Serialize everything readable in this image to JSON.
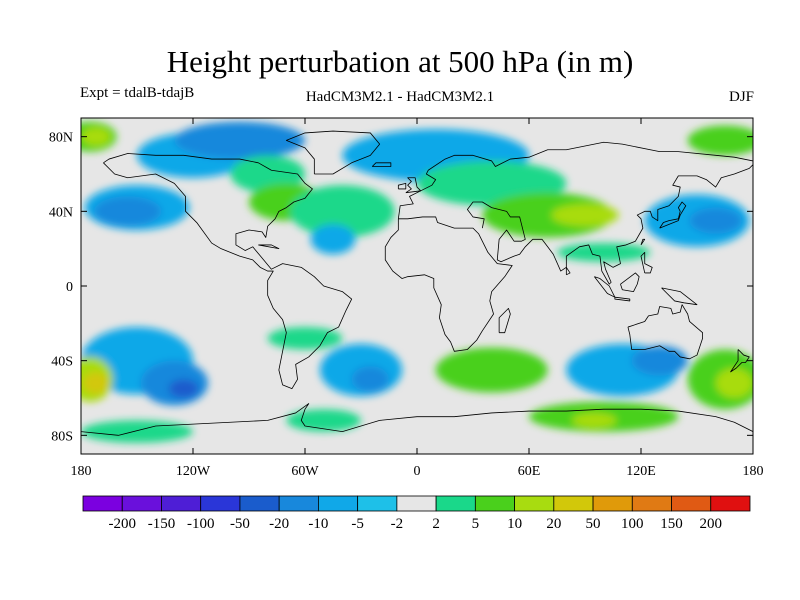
{
  "title": "Height perturbation at 500 hPa (in m)",
  "subtitle_left": "Expt = tdalB-tdajB",
  "subtitle_center": "HadCM3M2.1 - HadCM3M2.1",
  "subtitle_right": "DJF",
  "map": {
    "projection": "cylindrical equidistant",
    "lon_range": [
      -180,
      180
    ],
    "lat_range": [
      -90,
      90
    ],
    "background_color": "#e6e6e6",
    "lat_ticks": [
      {
        "value": 80,
        "label": "80N"
      },
      {
        "value": 40,
        "label": "40N"
      },
      {
        "value": 0,
        "label": "0"
      },
      {
        "value": -40,
        "label": "40S"
      },
      {
        "value": -80,
        "label": "80S"
      }
    ],
    "lon_ticks": [
      {
        "value": -180,
        "label": "180"
      },
      {
        "value": -120,
        "label": "120W"
      },
      {
        "value": -60,
        "label": "60W"
      },
      {
        "value": 0,
        "label": "0"
      },
      {
        "value": 60,
        "label": "60E"
      },
      {
        "value": 120,
        "label": "120E"
      },
      {
        "value": 180,
        "label": "180"
      }
    ]
  },
  "colorbar": {
    "colors": [
      "#7b00e0",
      "#6a10dc",
      "#4e1ed6",
      "#2a36d8",
      "#1a5ccc",
      "#1888dc",
      "#10a8e8",
      "#1ec0e8",
      "#e6e6e6",
      "#1ad88a",
      "#4ad01c",
      "#a8dc10",
      "#d2c80a",
      "#e09a0a",
      "#e07a14",
      "#e05a14",
      "#e01010"
    ],
    "labels": [
      "-200",
      "-150",
      "-100",
      "-50",
      "-20",
      "-10",
      "-5",
      "-2",
      "2",
      "5",
      "10",
      "20",
      "50",
      "100",
      "150",
      "200"
    ]
  },
  "field_blobs": [
    {
      "lon": -150,
      "lat": 42,
      "rx": 28,
      "ry": 12,
      "color": "#10a8e8"
    },
    {
      "lon": -155,
      "lat": 40,
      "rx": 18,
      "ry": 8,
      "color": "#1888dc"
    },
    {
      "lon": -175,
      "lat": 80,
      "rx": 14,
      "ry": 8,
      "color": "#4ad01c"
    },
    {
      "lon": -172,
      "lat": 80,
      "rx": 8,
      "ry": 5,
      "color": "#a8dc10"
    },
    {
      "lon": -120,
      "lat": 70,
      "rx": 30,
      "ry": 12,
      "color": "#10a8e8"
    },
    {
      "lon": -95,
      "lat": 78,
      "rx": 35,
      "ry": 10,
      "color": "#1888dc"
    },
    {
      "lon": -80,
      "lat": 60,
      "rx": 20,
      "ry": 10,
      "color": "#1ad88a"
    },
    {
      "lon": -70,
      "lat": 45,
      "rx": 20,
      "ry": 10,
      "color": "#4ad01c"
    },
    {
      "lon": -40,
      "lat": 40,
      "rx": 28,
      "ry": 14,
      "color": "#1ad88a"
    },
    {
      "lon": -45,
      "lat": 25,
      "rx": 12,
      "ry": 8,
      "color": "#10a8e8"
    },
    {
      "lon": 10,
      "lat": 70,
      "rx": 50,
      "ry": 14,
      "color": "#10a8e8"
    },
    {
      "lon": 40,
      "lat": 55,
      "rx": 40,
      "ry": 12,
      "color": "#1ad88a"
    },
    {
      "lon": 70,
      "lat": 38,
      "rx": 35,
      "ry": 12,
      "color": "#4ad01c"
    },
    {
      "lon": 90,
      "lat": 38,
      "rx": 18,
      "ry": 6,
      "color": "#a8dc10"
    },
    {
      "lon": 150,
      "lat": 35,
      "rx": 28,
      "ry": 14,
      "color": "#10a8e8"
    },
    {
      "lon": 160,
      "lat": 35,
      "rx": 14,
      "ry": 7,
      "color": "#1888dc"
    },
    {
      "lon": 165,
      "lat": 78,
      "rx": 20,
      "ry": 8,
      "color": "#4ad01c"
    },
    {
      "lon": 100,
      "lat": 18,
      "rx": 25,
      "ry": 5,
      "color": "#1ad88a"
    },
    {
      "lon": -150,
      "lat": -40,
      "rx": 30,
      "ry": 18,
      "color": "#10a8e8"
    },
    {
      "lon": -130,
      "lat": -52,
      "rx": 18,
      "ry": 12,
      "color": "#1888dc"
    },
    {
      "lon": -125,
      "lat": -55,
      "rx": 8,
      "ry": 5,
      "color": "#1a5ccc"
    },
    {
      "lon": -175,
      "lat": -50,
      "rx": 12,
      "ry": 12,
      "color": "#a8dc10"
    },
    {
      "lon": -172,
      "lat": -52,
      "rx": 7,
      "ry": 6,
      "color": "#d2c80a"
    },
    {
      "lon": -30,
      "lat": -45,
      "rx": 22,
      "ry": 14,
      "color": "#10a8e8"
    },
    {
      "lon": -25,
      "lat": -50,
      "rx": 10,
      "ry": 7,
      "color": "#1888dc"
    },
    {
      "lon": -60,
      "lat": -28,
      "rx": 20,
      "ry": 6,
      "color": "#1ad88a"
    },
    {
      "lon": 40,
      "lat": -45,
      "rx": 30,
      "ry": 12,
      "color": "#4ad01c"
    },
    {
      "lon": 110,
      "lat": -45,
      "rx": 30,
      "ry": 14,
      "color": "#10a8e8"
    },
    {
      "lon": 130,
      "lat": -40,
      "rx": 15,
      "ry": 8,
      "color": "#1888dc"
    },
    {
      "lon": 165,
      "lat": -50,
      "rx": 20,
      "ry": 16,
      "color": "#4ad01c"
    },
    {
      "lon": 170,
      "lat": -52,
      "rx": 10,
      "ry": 8,
      "color": "#a8dc10"
    },
    {
      "lon": 100,
      "lat": -70,
      "rx": 40,
      "ry": 8,
      "color": "#4ad01c"
    },
    {
      "lon": 95,
      "lat": -72,
      "rx": 12,
      "ry": 4,
      "color": "#a8dc10"
    },
    {
      "lon": -150,
      "lat": -78,
      "rx": 30,
      "ry": 6,
      "color": "#1ad88a"
    },
    {
      "lon": -50,
      "lat": -72,
      "rx": 20,
      "ry": 6,
      "color": "#1ad88a"
    }
  ],
  "coastlines": [
    [
      [
        -168,
        66
      ],
      [
        -162,
        60
      ],
      [
        -155,
        58
      ],
      [
        -140,
        60
      ],
      [
        -130,
        55
      ],
      [
        -124,
        48
      ],
      [
        -124,
        40
      ],
      [
        -118,
        34
      ],
      [
        -110,
        23
      ],
      [
        -105,
        20
      ],
      [
        -95,
        16
      ],
      [
        -88,
        14
      ],
      [
        -84,
        10
      ],
      [
        -80,
        8
      ],
      [
        -77,
        8
      ],
      [
        -80,
        3
      ],
      [
        -80,
        -5
      ],
      [
        -77,
        -12
      ],
      [
        -72,
        -18
      ],
      [
        -70,
        -25
      ],
      [
        -72,
        -35
      ],
      [
        -74,
        -45
      ],
      [
        -72,
        -53
      ],
      [
        -67,
        -55
      ],
      [
        -64,
        -50
      ],
      [
        -65,
        -42
      ],
      [
        -58,
        -38
      ],
      [
        -52,
        -32
      ],
      [
        -48,
        -25
      ],
      [
        -42,
        -22
      ],
      [
        -38,
        -13
      ],
      [
        -35,
        -7
      ],
      [
        -40,
        -3
      ],
      [
        -50,
        0
      ],
      [
        -55,
        5
      ],
      [
        -62,
        10
      ],
      [
        -72,
        12
      ],
      [
        -78,
        9
      ],
      [
        -83,
        15
      ],
      [
        -88,
        21
      ],
      [
        -92,
        19
      ],
      [
        -97,
        22
      ],
      [
        -97,
        28
      ],
      [
        -90,
        30
      ],
      [
        -83,
        29
      ],
      [
        -81,
        26
      ],
      [
        -80,
        32
      ],
      [
        -76,
        36
      ],
      [
        -74,
        40
      ],
      [
        -70,
        42
      ],
      [
        -66,
        45
      ],
      [
        -60,
        47
      ],
      [
        -56,
        52
      ],
      [
        -60,
        55
      ],
      [
        -64,
        60
      ],
      [
        -78,
        62
      ],
      [
        -85,
        66
      ],
      [
        -95,
        68
      ],
      [
        -110,
        68
      ],
      [
        -125,
        70
      ],
      [
        -140,
        70
      ],
      [
        -155,
        71
      ],
      [
        -165,
        68
      ],
      [
        -168,
        66
      ]
    ],
    [
      [
        -55,
        60
      ],
      [
        -45,
        60
      ],
      [
        -35,
        66
      ],
      [
        -25,
        70
      ],
      [
        -20,
        76
      ],
      [
        -25,
        82
      ],
      [
        -45,
        83
      ],
      [
        -60,
        82
      ],
      [
        -70,
        78
      ],
      [
        -60,
        74
      ],
      [
        -55,
        68
      ],
      [
        -55,
        60
      ]
    ],
    [
      [
        -10,
        36
      ],
      [
        -9,
        43
      ],
      [
        -2,
        44
      ],
      [
        -4,
        48
      ],
      [
        2,
        51
      ],
      [
        8,
        54
      ],
      [
        10,
        57
      ],
      [
        5,
        60
      ],
      [
        6,
        62
      ],
      [
        15,
        68
      ],
      [
        20,
        70
      ],
      [
        30,
        70
      ],
      [
        40,
        67
      ],
      [
        42,
        64
      ],
      [
        50,
        68
      ],
      [
        60,
        69
      ],
      [
        70,
        73
      ],
      [
        80,
        73
      ],
      [
        100,
        77
      ],
      [
        110,
        76
      ],
      [
        130,
        72
      ],
      [
        140,
        72
      ],
      [
        160,
        70
      ],
      [
        170,
        69
      ],
      [
        180,
        67
      ]
    ],
    [
      [
        -10,
        36
      ],
      [
        -5,
        36
      ],
      [
        3,
        37
      ],
      [
        10,
        37
      ],
      [
        11,
        34
      ],
      [
        20,
        31
      ],
      [
        30,
        31
      ],
      [
        33,
        28
      ],
      [
        35,
        24
      ],
      [
        38,
        18
      ],
      [
        43,
        12
      ],
      [
        51,
        11
      ],
      [
        47,
        5
      ],
      [
        40,
        -3
      ],
      [
        39,
        -8
      ],
      [
        41,
        -15
      ],
      [
        35,
        -24
      ],
      [
        32,
        -29
      ],
      [
        27,
        -34
      ],
      [
        20,
        -35
      ],
      [
        18,
        -30
      ],
      [
        15,
        -26
      ],
      [
        12,
        -17
      ],
      [
        13,
        -10
      ],
      [
        9,
        -1
      ],
      [
        9,
        4
      ],
      [
        4,
        6
      ],
      [
        -5,
        5
      ],
      [
        -8,
        4
      ],
      [
        -13,
        8
      ],
      [
        -17,
        14
      ],
      [
        -17,
        21
      ],
      [
        -14,
        26
      ],
      [
        -10,
        30
      ],
      [
        -10,
        36
      ]
    ],
    [
      [
        35,
        31
      ],
      [
        36,
        36
      ],
      [
        30,
        37
      ],
      [
        27,
        41
      ],
      [
        30,
        45
      ],
      [
        35,
        45
      ],
      [
        40,
        42
      ],
      [
        48,
        40
      ],
      [
        50,
        37
      ],
      [
        55,
        37
      ],
      [
        58,
        25
      ],
      [
        56,
        24
      ],
      [
        52,
        24
      ],
      [
        50,
        27
      ],
      [
        48,
        30
      ],
      [
        44,
        25
      ],
      [
        43,
        14
      ],
      [
        45,
        13
      ],
      [
        52,
        16
      ],
      [
        55,
        17
      ],
      [
        58,
        21
      ],
      [
        62,
        25
      ],
      [
        67,
        25
      ],
      [
        70,
        21
      ],
      [
        73,
        17
      ],
      [
        77,
        8
      ],
      [
        80,
        10
      ],
      [
        80,
        16
      ],
      [
        87,
        21
      ],
      [
        92,
        22
      ],
      [
        94,
        17
      ],
      [
        98,
        16
      ],
      [
        99,
        8
      ],
      [
        103,
        1
      ],
      [
        104,
        2
      ],
      [
        101,
        9
      ],
      [
        100,
        13
      ],
      [
        105,
        10
      ],
      [
        109,
        12
      ],
      [
        108,
        17
      ],
      [
        107,
        21
      ],
      [
        112,
        22
      ],
      [
        117,
        24
      ],
      [
        121,
        31
      ],
      [
        120,
        36
      ],
      [
        118,
        38
      ],
      [
        122,
        40
      ],
      [
        125,
        40
      ],
      [
        126,
        37
      ],
      [
        129,
        35
      ],
      [
        129,
        41
      ],
      [
        135,
        43
      ],
      [
        140,
        48
      ],
      [
        141,
        53
      ],
      [
        137,
        54
      ],
      [
        140,
        59
      ],
      [
        150,
        59
      ],
      [
        155,
        57
      ],
      [
        160,
        53
      ],
      [
        163,
        58
      ],
      [
        170,
        60
      ],
      [
        178,
        63
      ],
      [
        180,
        65
      ]
    ],
    [
      [
        113,
        -22
      ],
      [
        114,
        -26
      ],
      [
        115,
        -34
      ],
      [
        122,
        -34
      ],
      [
        130,
        -32
      ],
      [
        135,
        -35
      ],
      [
        138,
        -35
      ],
      [
        141,
        -38
      ],
      [
        146,
        -39
      ],
      [
        150,
        -37
      ],
      [
        153,
        -28
      ],
      [
        153,
        -25
      ],
      [
        146,
        -19
      ],
      [
        145,
        -15
      ],
      [
        142,
        -10
      ],
      [
        141,
        -14
      ],
      [
        137,
        -15
      ],
      [
        136,
        -12
      ],
      [
        130,
        -11
      ],
      [
        129,
        -15
      ],
      [
        124,
        -16
      ],
      [
        122,
        -19
      ],
      [
        116,
        -21
      ],
      [
        113,
        -22
      ]
    ],
    [
      [
        172,
        -34
      ],
      [
        175,
        -37
      ],
      [
        178,
        -38
      ],
      [
        176,
        -41
      ],
      [
        174,
        -41
      ],
      [
        171,
        -44
      ],
      [
        168,
        -46
      ],
      [
        170,
        -43
      ],
      [
        172,
        -40
      ],
      [
        172,
        -34
      ]
    ],
    [
      [
        -180,
        -78
      ],
      [
        -160,
        -80
      ],
      [
        -140,
        -75
      ],
      [
        -120,
        -74
      ],
      [
        -100,
        -73
      ],
      [
        -80,
        -72
      ],
      [
        -65,
        -68
      ],
      [
        -58,
        -63
      ],
      [
        -60,
        -66
      ],
      [
        -62,
        -72
      ],
      [
        -60,
        -75
      ],
      [
        -40,
        -78
      ],
      [
        -20,
        -72
      ],
      [
        0,
        -70
      ],
      [
        20,
        -70
      ],
      [
        40,
        -68
      ],
      [
        60,
        -67
      ],
      [
        80,
        -67
      ],
      [
        100,
        -66
      ],
      [
        120,
        -66
      ],
      [
        140,
        -67
      ],
      [
        160,
        -70
      ],
      [
        170,
        -73
      ],
      [
        180,
        -78
      ]
    ],
    [
      [
        -6,
        50
      ],
      [
        -3,
        52
      ],
      [
        -5,
        54
      ],
      [
        -3,
        56
      ],
      [
        -5,
        58
      ],
      [
        -1,
        58
      ],
      [
        0,
        53
      ],
      [
        2,
        51
      ],
      [
        -6,
        50
      ]
    ],
    [
      [
        -10,
        52
      ],
      [
        -6,
        52
      ],
      [
        -6,
        55
      ],
      [
        -10,
        54
      ],
      [
        -10,
        52
      ]
    ],
    [
      [
        130,
        31
      ],
      [
        132,
        34
      ],
      [
        135,
        35
      ],
      [
        140,
        36
      ],
      [
        141,
        40
      ],
      [
        140,
        42
      ],
      [
        142,
        45
      ],
      [
        144,
        43
      ],
      [
        141,
        38
      ],
      [
        140,
        35
      ],
      [
        135,
        33
      ],
      [
        130,
        31
      ]
    ],
    [
      [
        95,
        5
      ],
      [
        98,
        4
      ],
      [
        103,
        0
      ],
      [
        106,
        -6
      ],
      [
        102,
        -4
      ],
      [
        95,
        5
      ]
    ],
    [
      [
        106,
        -6
      ],
      [
        114,
        -7
      ],
      [
        114,
        -8
      ],
      [
        106,
        -7
      ],
      [
        106,
        -6
      ]
    ],
    [
      [
        109,
        1
      ],
      [
        117,
        7
      ],
      [
        119,
        5
      ],
      [
        118,
        1
      ],
      [
        116,
        -3
      ],
      [
        110,
        -2
      ],
      [
        109,
        1
      ]
    ],
    [
      [
        131,
        -1
      ],
      [
        141,
        -3
      ],
      [
        150,
        -10
      ],
      [
        143,
        -9
      ],
      [
        138,
        -8
      ],
      [
        131,
        -1
      ]
    ],
    [
      [
        44,
        -25
      ],
      [
        47,
        -25
      ],
      [
        50,
        -15
      ],
      [
        49,
        -12
      ],
      [
        44,
        -17
      ],
      [
        44,
        -25
      ]
    ],
    [
      [
        -24,
        64
      ],
      [
        -14,
        64
      ],
      [
        -14,
        66
      ],
      [
        -22,
        66
      ],
      [
        -24,
        64
      ]
    ],
    [
      [
        -85,
        22
      ],
      [
        -74,
        20
      ],
      [
        -78,
        22
      ],
      [
        -85,
        22
      ]
    ],
    [
      [
        120,
        22
      ],
      [
        122,
        25
      ],
      [
        121,
        25
      ],
      [
        120,
        22
      ]
    ],
    [
      [
        122,
        7
      ],
      [
        125,
        7
      ],
      [
        126,
        10
      ],
      [
        122,
        12
      ],
      [
        122,
        18
      ],
      [
        120,
        16
      ],
      [
        122,
        7
      ]
    ],
    [
      [
        80,
        6
      ],
      [
        82,
        7
      ],
      [
        80,
        10
      ],
      [
        80,
        6
      ]
    ]
  ]
}
